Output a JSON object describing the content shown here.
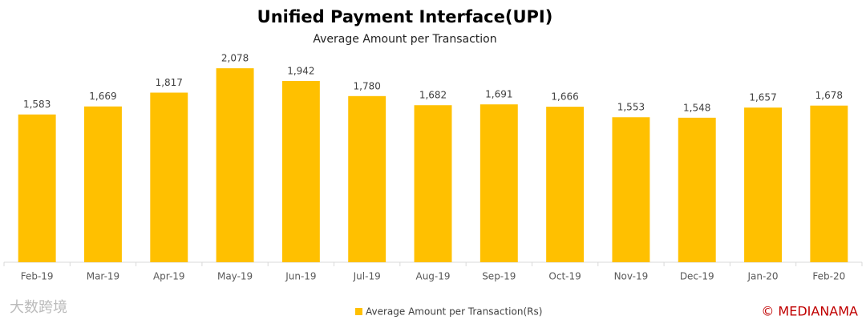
{
  "chart_data": {
    "type": "bar",
    "title": "Unified Payment Interface(UPI)",
    "subtitle": "Average Amount per Transaction",
    "categories": [
      "Feb-19",
      "Mar-19",
      "Apr-19",
      "May-19",
      "Jun-19",
      "Jul-19",
      "Aug-19",
      "Sep-19",
      "Oct-19",
      "Nov-19",
      "Dec-19",
      "Jan-20",
      "Feb-20"
    ],
    "series": [
      {
        "name": "Average Amount per Transaction(Rs)",
        "color": "#ffc000",
        "values": [
          1583,
          1669,
          1817,
          2078,
          1942,
          1780,
          1682,
          1691,
          1666,
          1553,
          1548,
          1657,
          1678
        ],
        "value_labels": [
          "1,583",
          "1,669",
          "1,817",
          "2,078",
          "1,942",
          "1,780",
          "1,682",
          "1,691",
          "1,666",
          "1,553",
          "1,548",
          "1,657",
          "1,678"
        ]
      }
    ],
    "ylim": [
      0,
      2500
    ],
    "legend": "bottom",
    "credit": "© MEDIANAMA",
    "watermark": "大数跨境"
  }
}
